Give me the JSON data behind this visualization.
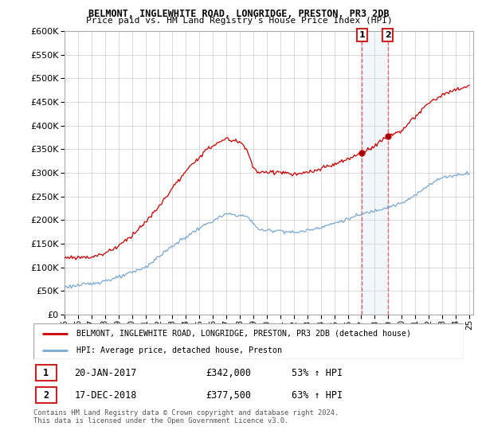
{
  "title1": "BELMONT, INGLEWHITE ROAD, LONGRIDGE, PRESTON, PR3 2DB",
  "title2": "Price paid vs. HM Land Registry's House Price Index (HPI)",
  "legend1": "BELMONT, INGLEWHITE ROAD, LONGRIDGE, PRESTON, PR3 2DB (detached house)",
  "legend2": "HPI: Average price, detached house, Preston",
  "footer": "Contains HM Land Registry data © Crown copyright and database right 2024.\nThis data is licensed under the Open Government Licence v3.0.",
  "line1_color": "#cc0000",
  "line2_color": "#7aa8d2",
  "annotation_box_color": "#cc2222",
  "vline_color": "#ee6666",
  "span_color": "#cce0f0",
  "grid_color": "#cccccc",
  "ylim": [
    0,
    600000
  ],
  "xlim_left": 1995,
  "xlim_right": 2025.3,
  "anno1_x": 2017.05,
  "anno1_y": 342000,
  "anno2_x": 2018.96,
  "anno2_y": 377500,
  "anno1_label": "1",
  "anno2_label": "2",
  "row1_date": "20-JAN-2017",
  "row1_price": "£342,000",
  "row1_hpi": "53% ↑ HPI",
  "row2_date": "17-DEC-2018",
  "row2_price": "£377,500",
  "row2_hpi": "63% ↑ HPI"
}
